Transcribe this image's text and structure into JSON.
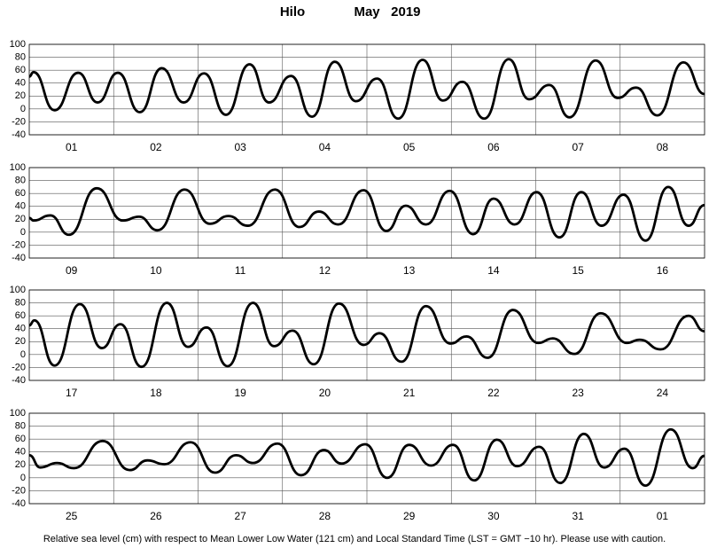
{
  "title": "Hilo",
  "subtitle": "May   2019",
  "footnote": "Relative sea level (cm) with respect to Mean Lower Low Water (121 cm) and Local Standard Time (LST = GMT −10 hr). Please use with caution.",
  "chart_data": [
    {
      "type": "line",
      "categories": [
        "01",
        "02",
        "03",
        "04",
        "05",
        "06",
        "07",
        "08"
      ],
      "x": [
        0,
        0.05,
        0.3,
        0.58,
        0.81,
        1.05,
        1.31,
        1.57,
        1.83,
        2.07,
        2.33,
        2.61,
        2.84,
        3.1,
        3.35,
        3.62,
        3.87,
        4.12,
        4.37,
        4.66,
        4.9,
        5.13,
        5.39,
        5.68,
        5.92,
        6.16,
        6.4,
        6.71,
        6.97,
        7.19,
        7.44,
        7.75,
        8
      ],
      "values": [
        50,
        57,
        -2,
        56,
        10,
        56,
        -5,
        63,
        10,
        55,
        -9,
        69,
        10,
        51,
        -12,
        73,
        12,
        47,
        -15,
        76,
        13,
        42,
        -15,
        77,
        15,
        37,
        -13,
        75,
        17,
        33,
        -10,
        72,
        23
      ],
      "xlim": [
        0,
        8
      ],
      "ylim": [
        -40,
        100
      ],
      "yticks": [
        -40,
        -20,
        0,
        20,
        40,
        60,
        80,
        100
      ],
      "grid": true,
      "color": "#000000"
    },
    {
      "type": "line",
      "categories": [
        "09",
        "10",
        "11",
        "12",
        "13",
        "14",
        "15",
        "16"
      ],
      "x": [
        0,
        0.05,
        0.25,
        0.47,
        0.8,
        1.11,
        1.3,
        1.52,
        1.84,
        2.14,
        2.36,
        2.59,
        2.91,
        3.2,
        3.43,
        3.66,
        3.96,
        4.23,
        4.46,
        4.7,
        4.98,
        5.26,
        5.5,
        5.75,
        6.01,
        6.28,
        6.54,
        6.78,
        7.04,
        7.3,
        7.57,
        7.81,
        8
      ],
      "values": [
        22,
        18,
        26,
        -4,
        68,
        18,
        24,
        3,
        66,
        13,
        25,
        10,
        66,
        8,
        32,
        12,
        65,
        2,
        41,
        12,
        64,
        -3,
        52,
        12,
        62,
        -8,
        62,
        10,
        58,
        -13,
        70,
        10,
        42
      ],
      "xlim": [
        0,
        8
      ],
      "ylim": [
        -40,
        100
      ],
      "yticks": [
        -40,
        -20,
        0,
        20,
        40,
        60,
        80,
        100
      ],
      "grid": true,
      "color": "#000000"
    },
    {
      "type": "line",
      "categories": [
        "17",
        "18",
        "19",
        "20",
        "21",
        "22",
        "23",
        "24"
      ],
      "x": [
        0,
        0.06,
        0.3,
        0.6,
        0.86,
        1.08,
        1.33,
        1.63,
        1.88,
        2.1,
        2.35,
        2.65,
        2.9,
        3.12,
        3.37,
        3.67,
        3.96,
        4.15,
        4.41,
        4.7,
        4.99,
        5.18,
        5.43,
        5.73,
        6.03,
        6.2,
        6.46,
        6.77,
        7.08,
        7.23,
        7.48,
        7.81,
        8
      ],
      "values": [
        45,
        53,
        -17,
        78,
        10,
        47,
        -19,
        80,
        12,
        42,
        -18,
        80,
        13,
        37,
        -15,
        79,
        15,
        33,
        -11,
        75,
        17,
        28,
        -5,
        69,
        18,
        25,
        1,
        64,
        18,
        23,
        8,
        60,
        36
      ],
      "xlim": [
        0,
        8
      ],
      "ylim": [
        -40,
        100
      ],
      "yticks": [
        -40,
        -20,
        0,
        20,
        40,
        60,
        80,
        100
      ],
      "grid": true,
      "color": "#000000"
    },
    {
      "type": "line",
      "categories": [
        "25",
        "26",
        "27",
        "28",
        "29",
        "30",
        "31",
        "01"
      ],
      "x": [
        0,
        0.13,
        0.33,
        0.53,
        0.87,
        1.19,
        1.4,
        1.6,
        1.91,
        2.2,
        2.45,
        2.65,
        2.94,
        3.22,
        3.49,
        3.7,
        3.98,
        4.24,
        4.5,
        4.76,
        5.02,
        5.27,
        5.54,
        5.78,
        6.04,
        6.29,
        6.57,
        6.81,
        7.05,
        7.3,
        7.6,
        7.86,
        8
      ],
      "values": [
        35,
        16,
        23,
        15,
        57,
        12,
        27,
        21,
        55,
        8,
        35,
        23,
        53,
        4,
        43,
        22,
        52,
        0,
        51,
        19,
        51,
        -4,
        59,
        18,
        48,
        -8,
        68,
        16,
        45,
        -12,
        75,
        15,
        34
      ],
      "xlim": [
        0,
        8
      ],
      "ylim": [
        -40,
        100
      ],
      "yticks": [
        -40,
        -20,
        0,
        20,
        40,
        60,
        80,
        100
      ],
      "grid": true,
      "color": "#000000"
    }
  ]
}
